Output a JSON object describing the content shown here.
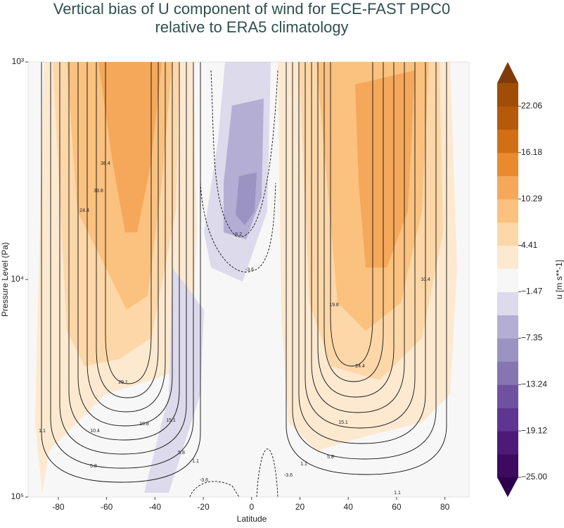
{
  "chart_data": {
    "type": "contourf",
    "title": [
      "Vertical bias of U component of wind for ECE-FAST PPC0",
      "relative to ERA5 climatology"
    ],
    "x_label": "Latitude",
    "y_label": "Pressure Level (Pa)",
    "xlim": [
      -92.5,
      90
    ],
    "xticks": [
      -80,
      -60,
      -40,
      -20,
      0,
      20,
      40,
      60,
      80
    ],
    "ylim": [
      1000,
      100000
    ],
    "log_y": true,
    "yticks": [
      {
        "value": 1000,
        "label": "10³"
      },
      {
        "value": 10000,
        "label": "10⁴"
      },
      {
        "value": 100000,
        "label": "10⁵"
      }
    ],
    "colorbar": {
      "label": "u [m s**-1]",
      "lim": [
        -25,
        25
      ],
      "ticks": [
        {
          "value": -25,
          "label": "−25.00"
        },
        {
          "value": -19.12,
          "label": "−19.12"
        },
        {
          "value": -13.24,
          "label": "−13.24"
        },
        {
          "value": -7.35,
          "label": "−7.35"
        },
        {
          "value": -1.47,
          "label": "−1.47"
        },
        {
          "value": 4.41,
          "label": "4.41"
        },
        {
          "value": 10.29,
          "label": "10.29"
        },
        {
          "value": 16.18,
          "label": "16.18"
        },
        {
          "value": 22.06,
          "label": "22.06"
        }
      ],
      "levels": [
        -25,
        -22.06,
        -19.12,
        -16.18,
        -13.24,
        -10.29,
        -7.35,
        -4.41,
        -1.47,
        1.47,
        4.41,
        7.35,
        10.29,
        13.24,
        16.18,
        19.12,
        22.06,
        25
      ],
      "colors": [
        "#3d0a5f",
        "#4d1a78",
        "#5e3590",
        "#6f529f",
        "#8576b0",
        "#9b93c2",
        "#b4aed4",
        "#dcdaeb",
        "#f7f7f7",
        "#fde9d0",
        "#fdd7a8",
        "#fbc17f",
        "#f5a85a",
        "#e98a2f",
        "#d06f16",
        "#b5590b",
        "#a04d08"
      ],
      "extend_colors": [
        "#2d004b",
        "#7f3b08"
      ]
    },
    "contour_labels": [
      "38.4",
      "33.8",
      "24.4",
      "29.1",
      "19.8",
      "15.1",
      "10.4",
      "5.8",
      "1.1",
      "5.8",
      "1.1",
      "-8.2",
      "-3.6",
      "-3.6",
      "-3.6",
      "1.1",
      "5.8",
      "15.1",
      "24.4",
      "19.8",
      "10.4",
      "1.1"
    ]
  }
}
